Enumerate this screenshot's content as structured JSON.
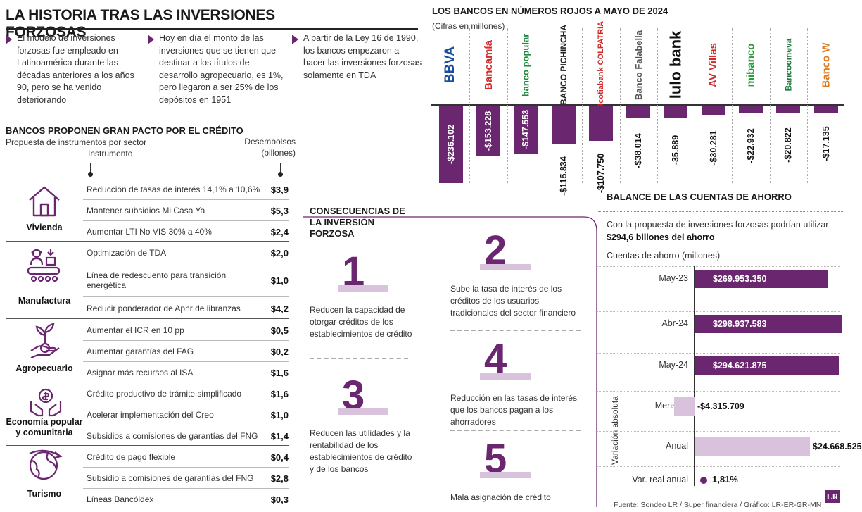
{
  "header": {
    "title": "LA HISTORIA TRAS LAS INVERSIONES FORZOSAS",
    "bullets": [
      "El modelo de inversiones forzosas fue empleado en Latinoamérica durante las décadas anteriores a los años 90, pero se ha venido deteriorando",
      "Hoy en día el monto de las inversiones que se tienen que destinar a los títulos de desarrollo agropecuario, es 1%, pero llegaron a ser 25% de los depósitos en 1951",
      "A partir de la Ley 16 de 1990, los bancos empezaron a hacer las inversiones forzosas solamente en TDA"
    ]
  },
  "pact": {
    "title": "BANCOS PROPONEN GRAN PACTO POR EL CRÉDITO",
    "subtitle": "Propuesta de instrumentos por sector",
    "col_instrument": "Instrumento",
    "col_disbursement": "Desembolsos (billones)",
    "sectors": [
      {
        "name": "Vivienda",
        "icon": "house-icon",
        "rows": [
          {
            "label": "Reducción de tasas de interés 14,1% a 10,6%",
            "value": "$3,9"
          },
          {
            "label": "Mantener subsidios Mi Casa Ya",
            "value": "$5,3"
          },
          {
            "label": "Aumentar LTI No VIS 30% a 40%",
            "value": "$2,4"
          }
        ]
      },
      {
        "name": "Manufactura",
        "icon": "factory-worker-icon",
        "rows": [
          {
            "label": "Optimización de TDA",
            "value": "$2,0"
          },
          {
            "label": "Línea de redescuento para transición energética",
            "value": "$1,0"
          },
          {
            "label": "Reducir ponderador de Apnr de libranzas",
            "value": "$4,2"
          }
        ]
      },
      {
        "name": "Agropecuario",
        "icon": "plant-hand-icon",
        "rows": [
          {
            "label": "Aumentar el ICR en 10 pp",
            "value": "$0,5"
          },
          {
            "label": "Aumentar garantías del FAG",
            "value": "$0,2"
          },
          {
            "label": "Asignar más recursos al ISA",
            "value": "$1,6"
          }
        ]
      },
      {
        "name": "Economía popular y comunitaria",
        "icon": "hands-money-icon",
        "rows": [
          {
            "label": "Crédito productivo de trámite simplificado",
            "value": "$1,6"
          },
          {
            "label": "Acelerar implementación del Creo",
            "value": "$1,0"
          },
          {
            "label": "Subsidios a comisiones de garantías del FNG",
            "value": "$1,4"
          }
        ]
      },
      {
        "name": "Turismo",
        "icon": "globe-plane-icon",
        "rows": [
          {
            "label": "Crédito de pago flexible",
            "value": "$0,4"
          },
          {
            "label": "Subsidio a comisiones de garantías del FNG",
            "value": "$2,8"
          },
          {
            "label": "Líneas Bancóldex",
            "value": "$0,3"
          }
        ]
      }
    ]
  },
  "consequences": {
    "title": "CONSECUENCIAS DE LA INVERSIÓN FORZOSA",
    "items": [
      {
        "num": "1",
        "text": "Reducen la capacidad de otorgar créditos de los establecimientos de crédito"
      },
      {
        "num": "2",
        "text": "Sube la tasa de interés de los créditos de los usuarios tradicionales del sector financiero"
      },
      {
        "num": "3",
        "text": "Reducen las utilidades y la rentabilidad de los establecimientos de crédito y de los bancos"
      },
      {
        "num": "4",
        "text": "Reducción en las tasas de interés que los bancos pagan a los ahorradores"
      },
      {
        "num": "5",
        "text": "Mala asignación de crédito"
      }
    ]
  },
  "chart_data": [
    {
      "type": "bar",
      "title": "LOS BANCOS EN NÚMEROS ROJOS A MAYO DE 2024",
      "subtitle": "(Cifras en millones)",
      "categories": [
        "BBVA",
        "Bancamía",
        "banco popular",
        "BANCO PICHINCHA",
        "Scotiabank COLPATRIA",
        "Banco Falabella",
        "lulo bank",
        "AV Villas",
        "mibanco",
        "Bancoomeva",
        "Banco W"
      ],
      "values": [
        -236.102,
        -153.228,
        -147.553,
        -115.834,
        -107.75,
        -38.014,
        -35.889,
        -30.281,
        -22.932,
        -20.822,
        -17.135
      ],
      "value_labels": [
        "-$236.102",
        "-$153.228",
        "-$147.553",
        "-$115.834",
        "-$107.750",
        "-$38.014",
        "-35.889",
        "-$30.281",
        "-$22.932",
        "-$20.822",
        "-$17.135"
      ],
      "ylim": [
        -240,
        0
      ]
    },
    {
      "type": "bar",
      "title": "BALANCE DE LAS CUENTAS DE AHORRO",
      "intro": "Con la propuesta de inversiones forzosas podrían utilizar",
      "intro_bold": "$294,6 billones del ahorro",
      "ylabel": "Cuentas de ahorro (millones)",
      "categories": [
        "May-23",
        "Abr-24",
        "May-24"
      ],
      "values": [
        269953350,
        298937583,
        294621875
      ],
      "value_labels": [
        "$269.953.350",
        "$298.937.583",
        "$294.621.875"
      ],
      "variation_label": "Variación absoluta",
      "variation": [
        {
          "label": "Mensual",
          "value": -4315709,
          "value_label": "-$4.315.709"
        },
        {
          "label": "Anual",
          "value": 24668525,
          "value_label": "$24.668.525"
        }
      ],
      "real_label": "Var. real anual",
      "real_value": "1,81%"
    }
  ],
  "footer": {
    "source": "Fuente: Sondeo LR / Super financiera  / Gráfico: LR-ER-GR-MN",
    "badge": "LR"
  },
  "colors": {
    "accent": "#6b2670",
    "light": "#d9c2dc"
  }
}
